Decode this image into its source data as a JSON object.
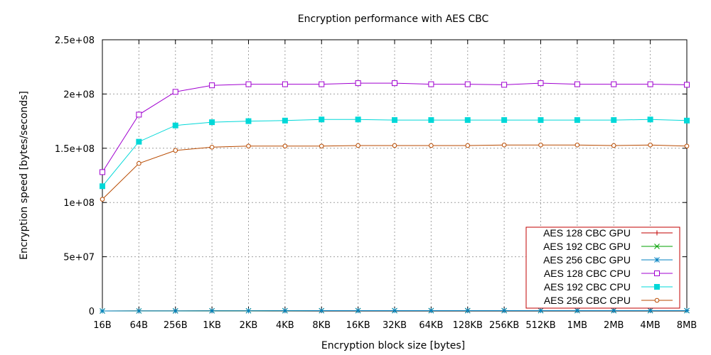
{
  "chart_data": {
    "type": "line",
    "title": "Encryption performance with AES CBC",
    "xlabel": "Encryption block size [bytes]",
    "ylabel": "Encryption speed [bytes/seconds]",
    "categories": [
      "16B",
      "64B",
      "256B",
      "1KB",
      "2KB",
      "4KB",
      "8KB",
      "16KB",
      "32KB",
      "64KB",
      "128KB",
      "256KB",
      "512KB",
      "1MB",
      "2MB",
      "4MB",
      "8MB"
    ],
    "ylim": [
      0,
      250000000
    ],
    "yticks": [
      0,
      50000000,
      100000000,
      150000000,
      200000000,
      250000000
    ],
    "ytick_labels": [
      "0",
      "5e+07",
      "1e+08",
      "1.5e+08",
      "2e+08",
      "2.5e+08"
    ],
    "grid": true,
    "legend_position": "bottom-right",
    "series": [
      {
        "name": "AES 128 CBC GPU",
        "color": "#c00000",
        "marker": "plus",
        "values": [
          20000,
          40000,
          80000,
          150000,
          200000,
          250000,
          300000,
          320000,
          330000,
          340000,
          350000,
          350000,
          350000,
          350000,
          350000,
          350000,
          350000
        ]
      },
      {
        "name": "AES 192 CBC GPU",
        "color": "#00a000",
        "marker": "cross",
        "values": [
          20000,
          40000,
          80000,
          150000,
          200000,
          250000,
          300000,
          320000,
          330000,
          340000,
          350000,
          350000,
          350000,
          350000,
          350000,
          350000,
          350000
        ]
      },
      {
        "name": "AES 256 CBC GPU",
        "color": "#0080c0",
        "marker": "star",
        "values": [
          20000,
          40000,
          80000,
          150000,
          200000,
          250000,
          300000,
          320000,
          330000,
          340000,
          350000,
          350000,
          350000,
          350000,
          350000,
          350000,
          350000
        ]
      },
      {
        "name": "AES 128 CBC CPU",
        "color": "#a000d0",
        "marker": "open-square",
        "values": [
          128000000,
          181000000,
          202000000,
          208000000,
          209000000,
          209000000,
          209000000,
          210000000,
          210000000,
          209000000,
          209000000,
          208500000,
          210000000,
          209000000,
          209000000,
          209000000,
          208500000
        ]
      },
      {
        "name": "AES 192 CBC CPU",
        "color": "#00d8d8",
        "marker": "filled-square",
        "values": [
          115000000,
          156000000,
          171000000,
          174000000,
          175000000,
          175500000,
          176500000,
          176500000,
          176000000,
          176000000,
          176000000,
          176000000,
          176000000,
          176000000,
          176000000,
          176500000,
          175500000
        ]
      },
      {
        "name": "AES 256 CBC CPU",
        "color": "#b84a00",
        "marker": "open-circle",
        "values": [
          103000000,
          136000000,
          148000000,
          151000000,
          152000000,
          152000000,
          152000000,
          152500000,
          152500000,
          152500000,
          152500000,
          153000000,
          153000000,
          153000000,
          152500000,
          153000000,
          152000000
        ]
      }
    ]
  }
}
